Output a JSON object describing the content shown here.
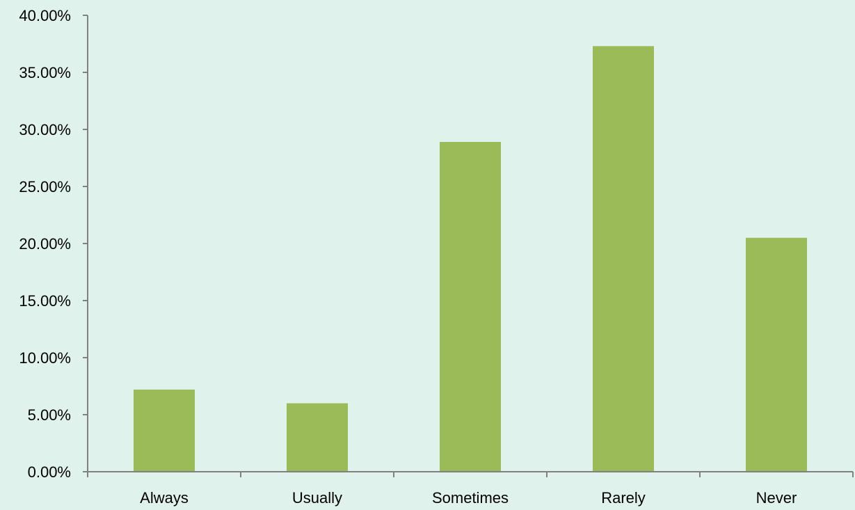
{
  "chart_data": {
    "type": "bar",
    "categories": [
      "Always",
      "Usually",
      "Sometimes",
      "Rarely",
      "Never"
    ],
    "series": [
      {
        "values": [
          7.2,
          6.0,
          28.9,
          37.3,
          20.5
        ]
      }
    ],
    "ylim": [
      0,
      40
    ],
    "y_ticks": [
      0,
      5,
      10,
      15,
      20,
      25,
      30,
      35,
      40
    ],
    "y_tick_labels": [
      "0.00%",
      "5.00%",
      "10.00%",
      "15.00%",
      "20.00%",
      "25.00%",
      "30.00%",
      "35.00%",
      "40.00%"
    ],
    "title": "",
    "xlabel": "",
    "ylabel": "",
    "grid": false,
    "legend": false,
    "colors": {
      "bar": "#9bbb59",
      "axis": "#808080",
      "background": "#e0f2ec"
    }
  }
}
